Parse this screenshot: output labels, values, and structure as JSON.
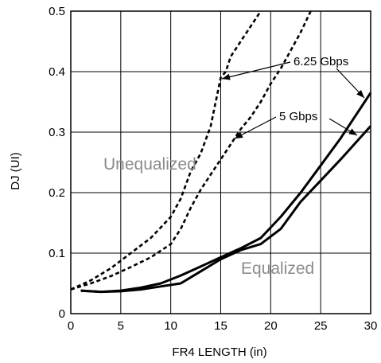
{
  "chart_data": {
    "type": "line",
    "title": "",
    "xlabel": "FR4 LENGTH (in)",
    "ylabel": "DJ (UI)",
    "xlim": [
      0,
      30
    ],
    "ylim": [
      0,
      0.5
    ],
    "xticks": [
      0,
      5,
      10,
      15,
      20,
      25,
      30
    ],
    "yticks": [
      0,
      0.1,
      0.2,
      0.3,
      0.4,
      0.5
    ],
    "xtick_labels": [
      "0",
      "5",
      "10",
      "15",
      "20",
      "25",
      "30"
    ],
    "ytick_labels": [
      "0",
      "0.1",
      "0.2",
      "0.3",
      "0.4",
      "0.5"
    ],
    "grid": true,
    "series": [
      {
        "group": "unequalized",
        "rate": "6.25 Gbps",
        "x": [
          0,
          2,
          4,
          6,
          8,
          10,
          11,
          12,
          13,
          14,
          15,
          15.5,
          16,
          17,
          18,
          19
        ],
        "y": [
          0.04,
          0.055,
          0.075,
          0.1,
          0.125,
          0.16,
          0.19,
          0.235,
          0.265,
          0.31,
          0.39,
          0.4,
          0.425,
          0.45,
          0.475,
          0.5
        ]
      },
      {
        "group": "unequalized",
        "rate": "5 Gbps",
        "x": [
          0,
          2,
          4,
          6,
          8,
          10,
          11,
          12,
          13,
          14,
          15,
          16,
          17,
          18,
          19,
          20,
          21,
          22,
          23,
          24
        ],
        "y": [
          0.04,
          0.05,
          0.062,
          0.077,
          0.093,
          0.115,
          0.14,
          0.175,
          0.205,
          0.23,
          0.255,
          0.28,
          0.305,
          0.325,
          0.35,
          0.38,
          0.405,
          0.435,
          0.465,
          0.5
        ]
      },
      {
        "group": "equalized",
        "rate": "6.25 Gbps",
        "x": [
          1,
          3,
          5,
          7,
          9,
          11,
          13,
          15,
          17,
          19,
          21,
          23,
          25,
          27,
          30
        ],
        "y": [
          0.038,
          0.036,
          0.038,
          0.043,
          0.05,
          0.063,
          0.078,
          0.093,
          0.108,
          0.125,
          0.16,
          0.2,
          0.245,
          0.29,
          0.365
        ]
      },
      {
        "group": "equalized",
        "rate": "5 Gbps",
        "x": [
          1,
          3,
          5,
          7,
          9,
          11,
          13,
          15,
          17,
          19,
          21,
          23,
          25,
          27,
          30
        ],
        "y": [
          0.038,
          0.036,
          0.037,
          0.04,
          0.045,
          0.05,
          0.07,
          0.09,
          0.105,
          0.115,
          0.14,
          0.185,
          0.22,
          0.255,
          0.31
        ]
      }
    ],
    "annotations": {
      "label_625": "6.25 Gbps",
      "label_5": "5 Gbps",
      "unequalized": "Unequalized",
      "equalized": "Equalized"
    }
  }
}
